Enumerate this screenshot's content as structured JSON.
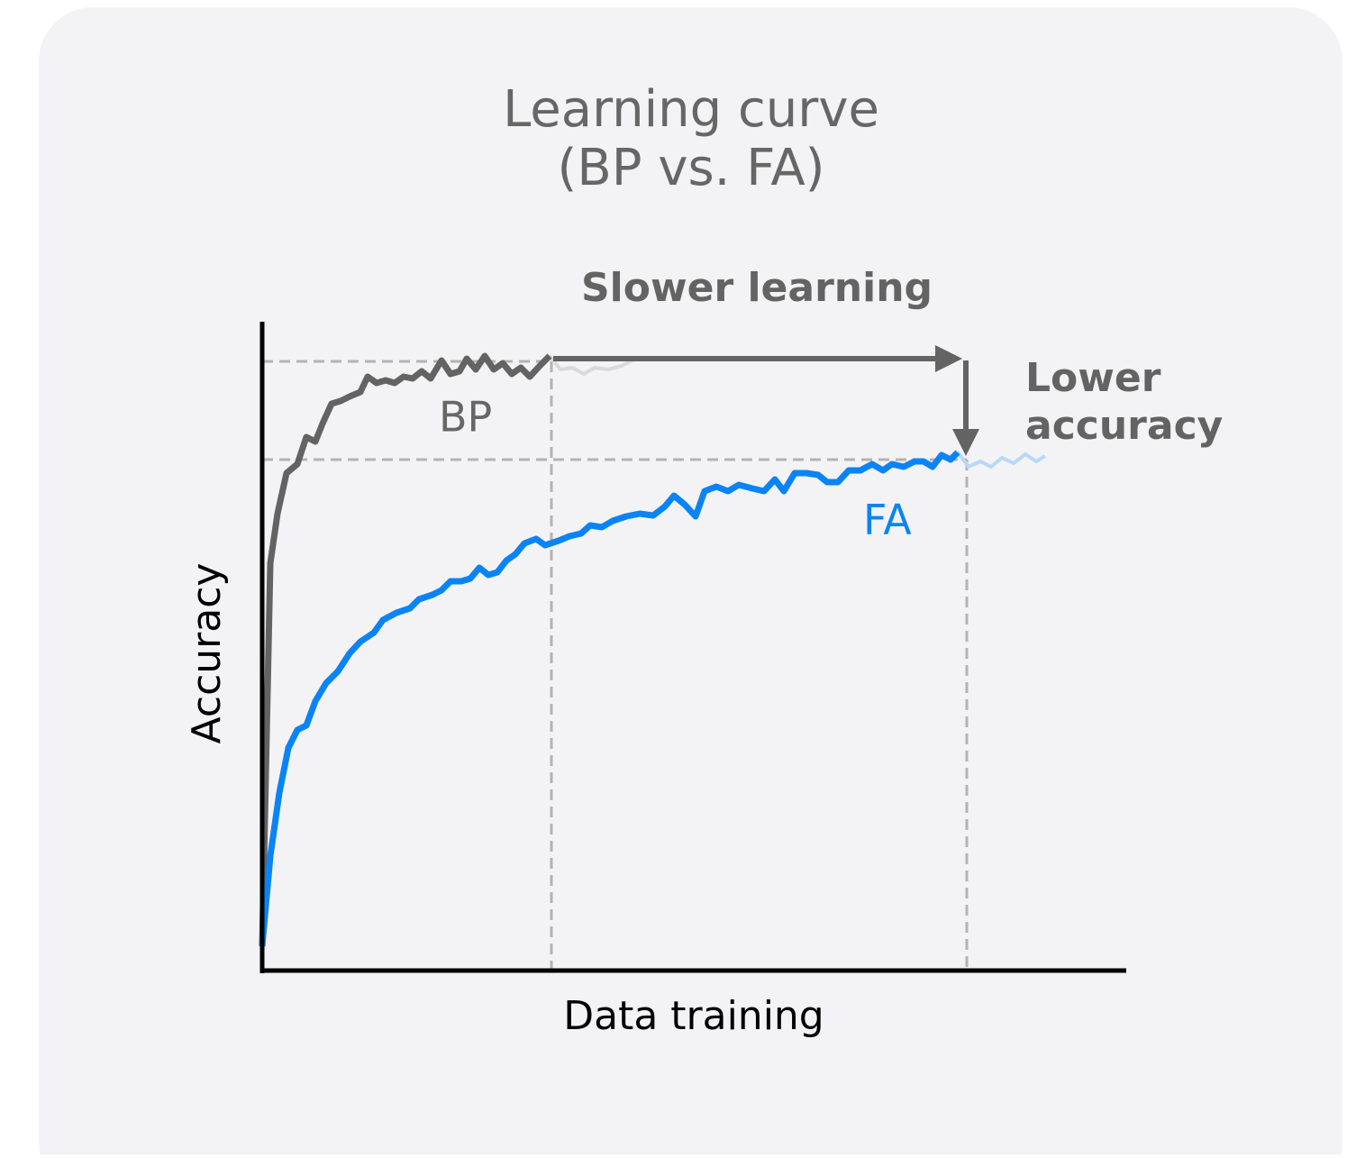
{
  "title": {
    "line1": "Learning curve",
    "line2": "(BP vs. FA)"
  },
  "annotations": {
    "slower": "Slower learning",
    "lower1": "Lower",
    "lower2": "accuracy"
  },
  "series": {
    "bp": "BP",
    "fa": "FA"
  },
  "axes": {
    "y": "Accuracy",
    "x": "Data training"
  }
}
